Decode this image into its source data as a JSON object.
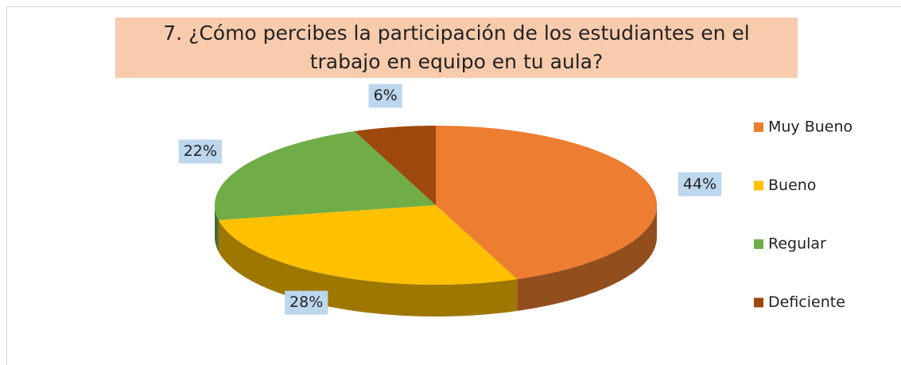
{
  "chart_data": {
    "type": "pie",
    "title": "7. ¿Cómo percibes la participación de los estudiantes en el trabajo en equipo en tu aula?",
    "categories": [
      "Muy Bueno",
      "Bueno",
      "Regular",
      "Deficiente"
    ],
    "values": [
      44,
      28,
      22,
      6
    ],
    "value_labels": [
      "44%",
      "28%",
      "22%",
      "6%"
    ],
    "colors": [
      "#ED7D31",
      "#FFC000",
      "#70AD47",
      "#9E480E"
    ],
    "legend": "right"
  }
}
